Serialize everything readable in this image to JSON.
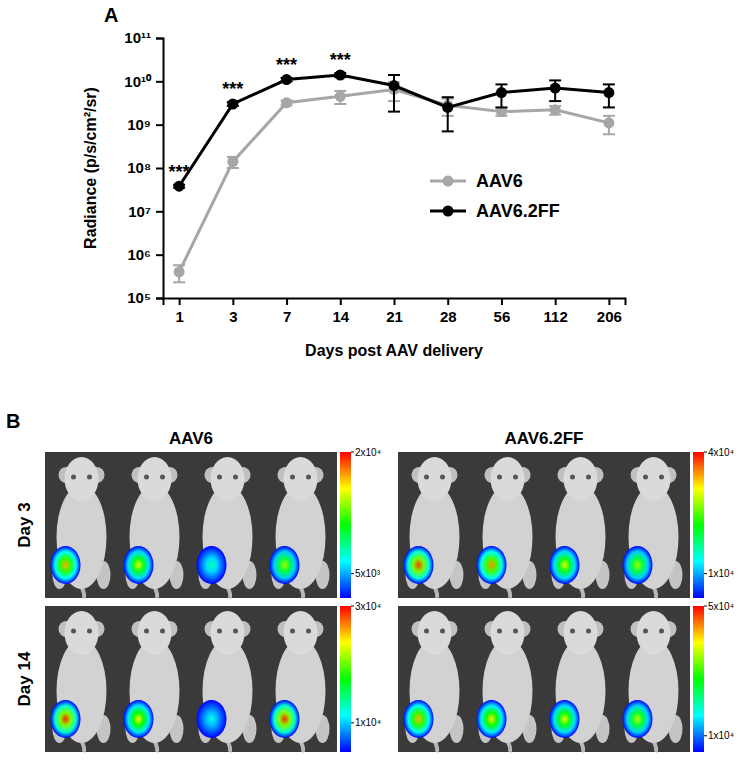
{
  "chart_data": [
    {
      "panel": "A",
      "type": "line",
      "log": "y",
      "legend": "right",
      "marker": "circle",
      "categories": [
        "1",
        "3",
        "7",
        "14",
        "21",
        "28",
        "56",
        "112",
        "206"
      ],
      "x_label": "Days post AAV delivery",
      "y_label": "Radiance (p/s/cm²/sr)",
      "ylim": [
        100000,
        100000000000
      ],
      "yticks": [
        {
          "value": 100000,
          "label": "10⁵"
        },
        {
          "value": 1000000,
          "label": "10⁶"
        },
        {
          "value": 10000000,
          "label": "10⁷"
        },
        {
          "value": 100000000,
          "label": "10⁸"
        },
        {
          "value": 1000000000,
          "label": "10⁹"
        },
        {
          "value": 10000000000,
          "label": "10¹⁰"
        },
        {
          "value": 100000000000,
          "label": "10¹¹"
        }
      ],
      "series": [
        {
          "name": "AAV6",
          "color": "#a6a6a6",
          "values": [
            400000,
            140000000,
            3200000000,
            4500000000,
            6500000000,
            2800000000,
            2000000000,
            2200000000,
            1100000000
          ],
          "errors": [
            170000,
            40000000,
            400000000,
            1500000000,
            3000000000,
            1200000000,
            400000000,
            500000000,
            500000000
          ]
        },
        {
          "name": "AAV6.2FF",
          "color": "#000000",
          "values": [
            38000000,
            3000000000,
            11000000000,
            14000000000,
            8000000000,
            2500000000,
            5500000000,
            7000000000,
            5500000000
          ],
          "errors": [
            3000000,
            300000000,
            1000000000,
            1500000000,
            6000000000,
            1800000000,
            3000000000,
            3500000000,
            3000000000
          ]
        }
      ],
      "annotations": [
        {
          "x": "1",
          "text": "***"
        },
        {
          "x": "3",
          "text": "***"
        },
        {
          "x": "7",
          "text": "***"
        },
        {
          "x": "14",
          "text": "***"
        }
      ]
    },
    {
      "panel": "B",
      "type": "image",
      "columns": [
        "AAV6",
        "AAV6.2FF"
      ],
      "rows": [
        "Day 3",
        "Day 14"
      ],
      "panels": [
        [
          {
            "colorbar": {
              "range": [
                2000,
                20000
              ],
              "ticks": [
                {
                  "value": 20000,
                  "label": "2x10⁴"
                },
                {
                  "value": 5000,
                  "label": "5x10³"
                }
              ]
            },
            "peaks": [
              17000,
              15000,
              8000,
              14000
            ]
          },
          {
            "colorbar": {
              "range": [
                4000,
                40000
              ],
              "ticks": [
                {
                  "value": 40000,
                  "label": "4x10⁴"
                },
                {
                  "value": 10000,
                  "label": "1x10⁴"
                }
              ]
            },
            "peaks": [
              38000,
              35000,
              30000,
              28000
            ]
          }
        ],
        [
          {
            "colorbar": {
              "range": [
                5000,
                30000
              ],
              "ticks": [
                {
                  "value": 30000,
                  "label": "3x10⁴"
                },
                {
                  "value": 10000,
                  "label": "1x10⁴"
                }
              ]
            },
            "peaks": [
              29000,
              24000,
              12000,
              29000
            ]
          },
          {
            "colorbar": {
              "range": [
                5000,
                50000
              ],
              "ticks": [
                {
                  "value": 50000,
                  "label": "5x10⁴"
                },
                {
                  "value": 10000,
                  "label": "1x10⁴"
                }
              ]
            },
            "peaks": [
              42000,
              40000,
              38000,
              36000
            ]
          }
        ]
      ]
    }
  ]
}
